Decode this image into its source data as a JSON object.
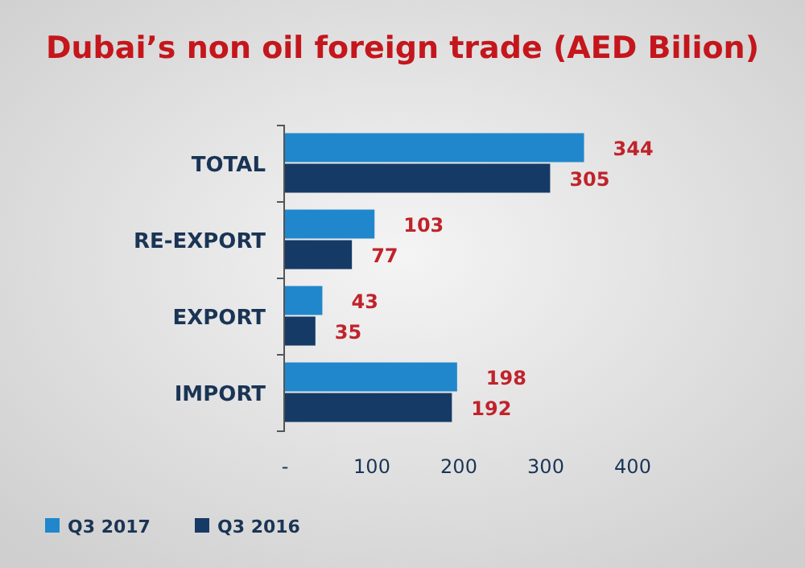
{
  "chart_data": {
    "type": "bar",
    "orientation": "horizontal",
    "title": "Dubai’s non oil foreign trade (AED Bilion)",
    "categories": [
      "TOTAL",
      "RE-EXPORT",
      "EXPORT",
      "IMPORT"
    ],
    "series": [
      {
        "name": "Q3 2017",
        "color": "#2187cc",
        "values": [
          344,
          103,
          43,
          198
        ]
      },
      {
        "name": "Q3 2016",
        "color": "#163a66",
        "values": [
          305,
          77,
          35,
          192
        ]
      }
    ],
    "xlim": [
      0,
      400
    ],
    "xticks": [
      {
        "value": 0,
        "label": "-"
      },
      100,
      200,
      300,
      400
    ],
    "data_labels": true,
    "grid": false,
    "legend": "bottom left"
  }
}
